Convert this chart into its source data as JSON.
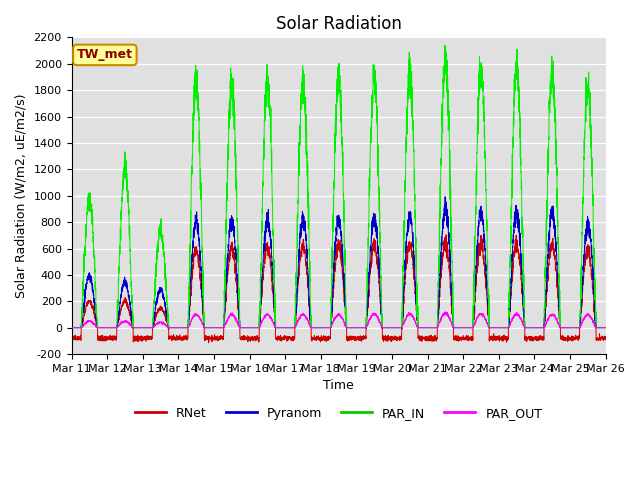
{
  "title": "Solar Radiation",
  "ylabel": "Solar Radiation (W/m2, uE/m2/s)",
  "xlabel": "Time",
  "ylim": [
    -200,
    2200
  ],
  "yticks": [
    -200,
    0,
    200,
    400,
    600,
    800,
    1000,
    1200,
    1400,
    1600,
    1800,
    2000,
    2200
  ],
  "xtick_labels": [
    "Mar 11",
    "Mar 12",
    "Mar 13",
    "Mar 14",
    "Mar 15",
    "Mar 16",
    "Mar 17",
    "Mar 18",
    "Mar 19",
    "Mar 20",
    "Mar 21",
    "Mar 22",
    "Mar 23",
    "Mar 24",
    "Mar 25",
    "Mar 26"
  ],
  "legend_labels": [
    "RNet",
    "Pyranom",
    "PAR_IN",
    "PAR_OUT"
  ],
  "legend_colors": [
    "#cc0000",
    "#0000cc",
    "#00cc00",
    "#ff00ff"
  ],
  "annotation_text": "TW_met",
  "annotation_bg": "#ffff99",
  "annotation_border": "#cc8800",
  "line_colors": {
    "RNet": "#cc0000",
    "Pyranom": "#0000cc",
    "PAR_IN": "#00ee00",
    "PAR_OUT": "#ff00ff"
  },
  "bg_color": "#e0e0e0",
  "title_fontsize": 12,
  "axis_fontsize": 9,
  "tick_fontsize": 8,
  "num_days": 15,
  "pts_per_day": 288,
  "par_in_peaks": [
    980,
    1200,
    730,
    1850,
    1850,
    1870,
    1870,
    1870,
    1900,
    1920,
    2040,
    1970,
    1970,
    1930,
    1820
  ],
  "pyranom_peaks": [
    400,
    350,
    290,
    810,
    810,
    825,
    820,
    820,
    835,
    840,
    900,
    870,
    870,
    870,
    790
  ],
  "rnet_peaks": [
    200,
    200,
    150,
    590,
    610,
    620,
    615,
    620,
    625,
    630,
    650,
    640,
    640,
    630,
    590
  ],
  "par_out_peaks": [
    50,
    50,
    40,
    100,
    100,
    100,
    100,
    100,
    105,
    105,
    110,
    105,
    105,
    100,
    100
  ]
}
